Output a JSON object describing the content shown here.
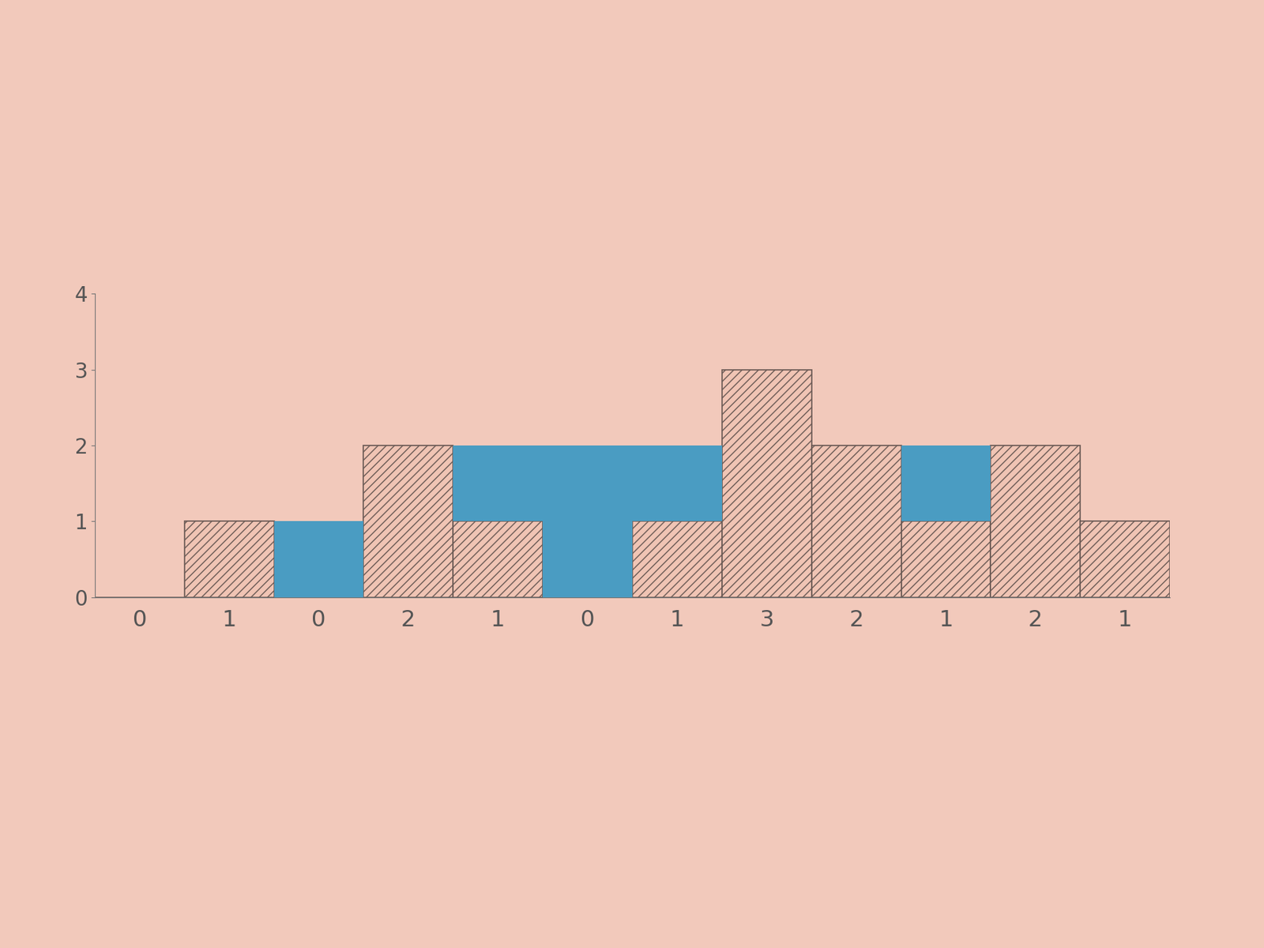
{
  "chart_data": {
    "type": "bar",
    "stacked": true,
    "categories": [
      "0",
      "1",
      "0",
      "2",
      "1",
      "0",
      "1",
      "3",
      "2",
      "1",
      "2",
      "1"
    ],
    "series": [
      {
        "color": "#f0c4b4",
        "values": [
          0,
          1,
          0,
          2,
          1,
          0,
          1,
          3,
          2,
          1,
          2,
          1
        ]
      },
      {
        "color": "#4a9cc2",
        "values": [
          0,
          0,
          1,
          0,
          1,
          2,
          1,
          0,
          0,
          1,
          0,
          0
        ]
      }
    ],
    "ylim": [
      0,
      4
    ],
    "yticks": [
      0,
      1,
      2,
      3,
      4
    ],
    "grid": false
  }
}
